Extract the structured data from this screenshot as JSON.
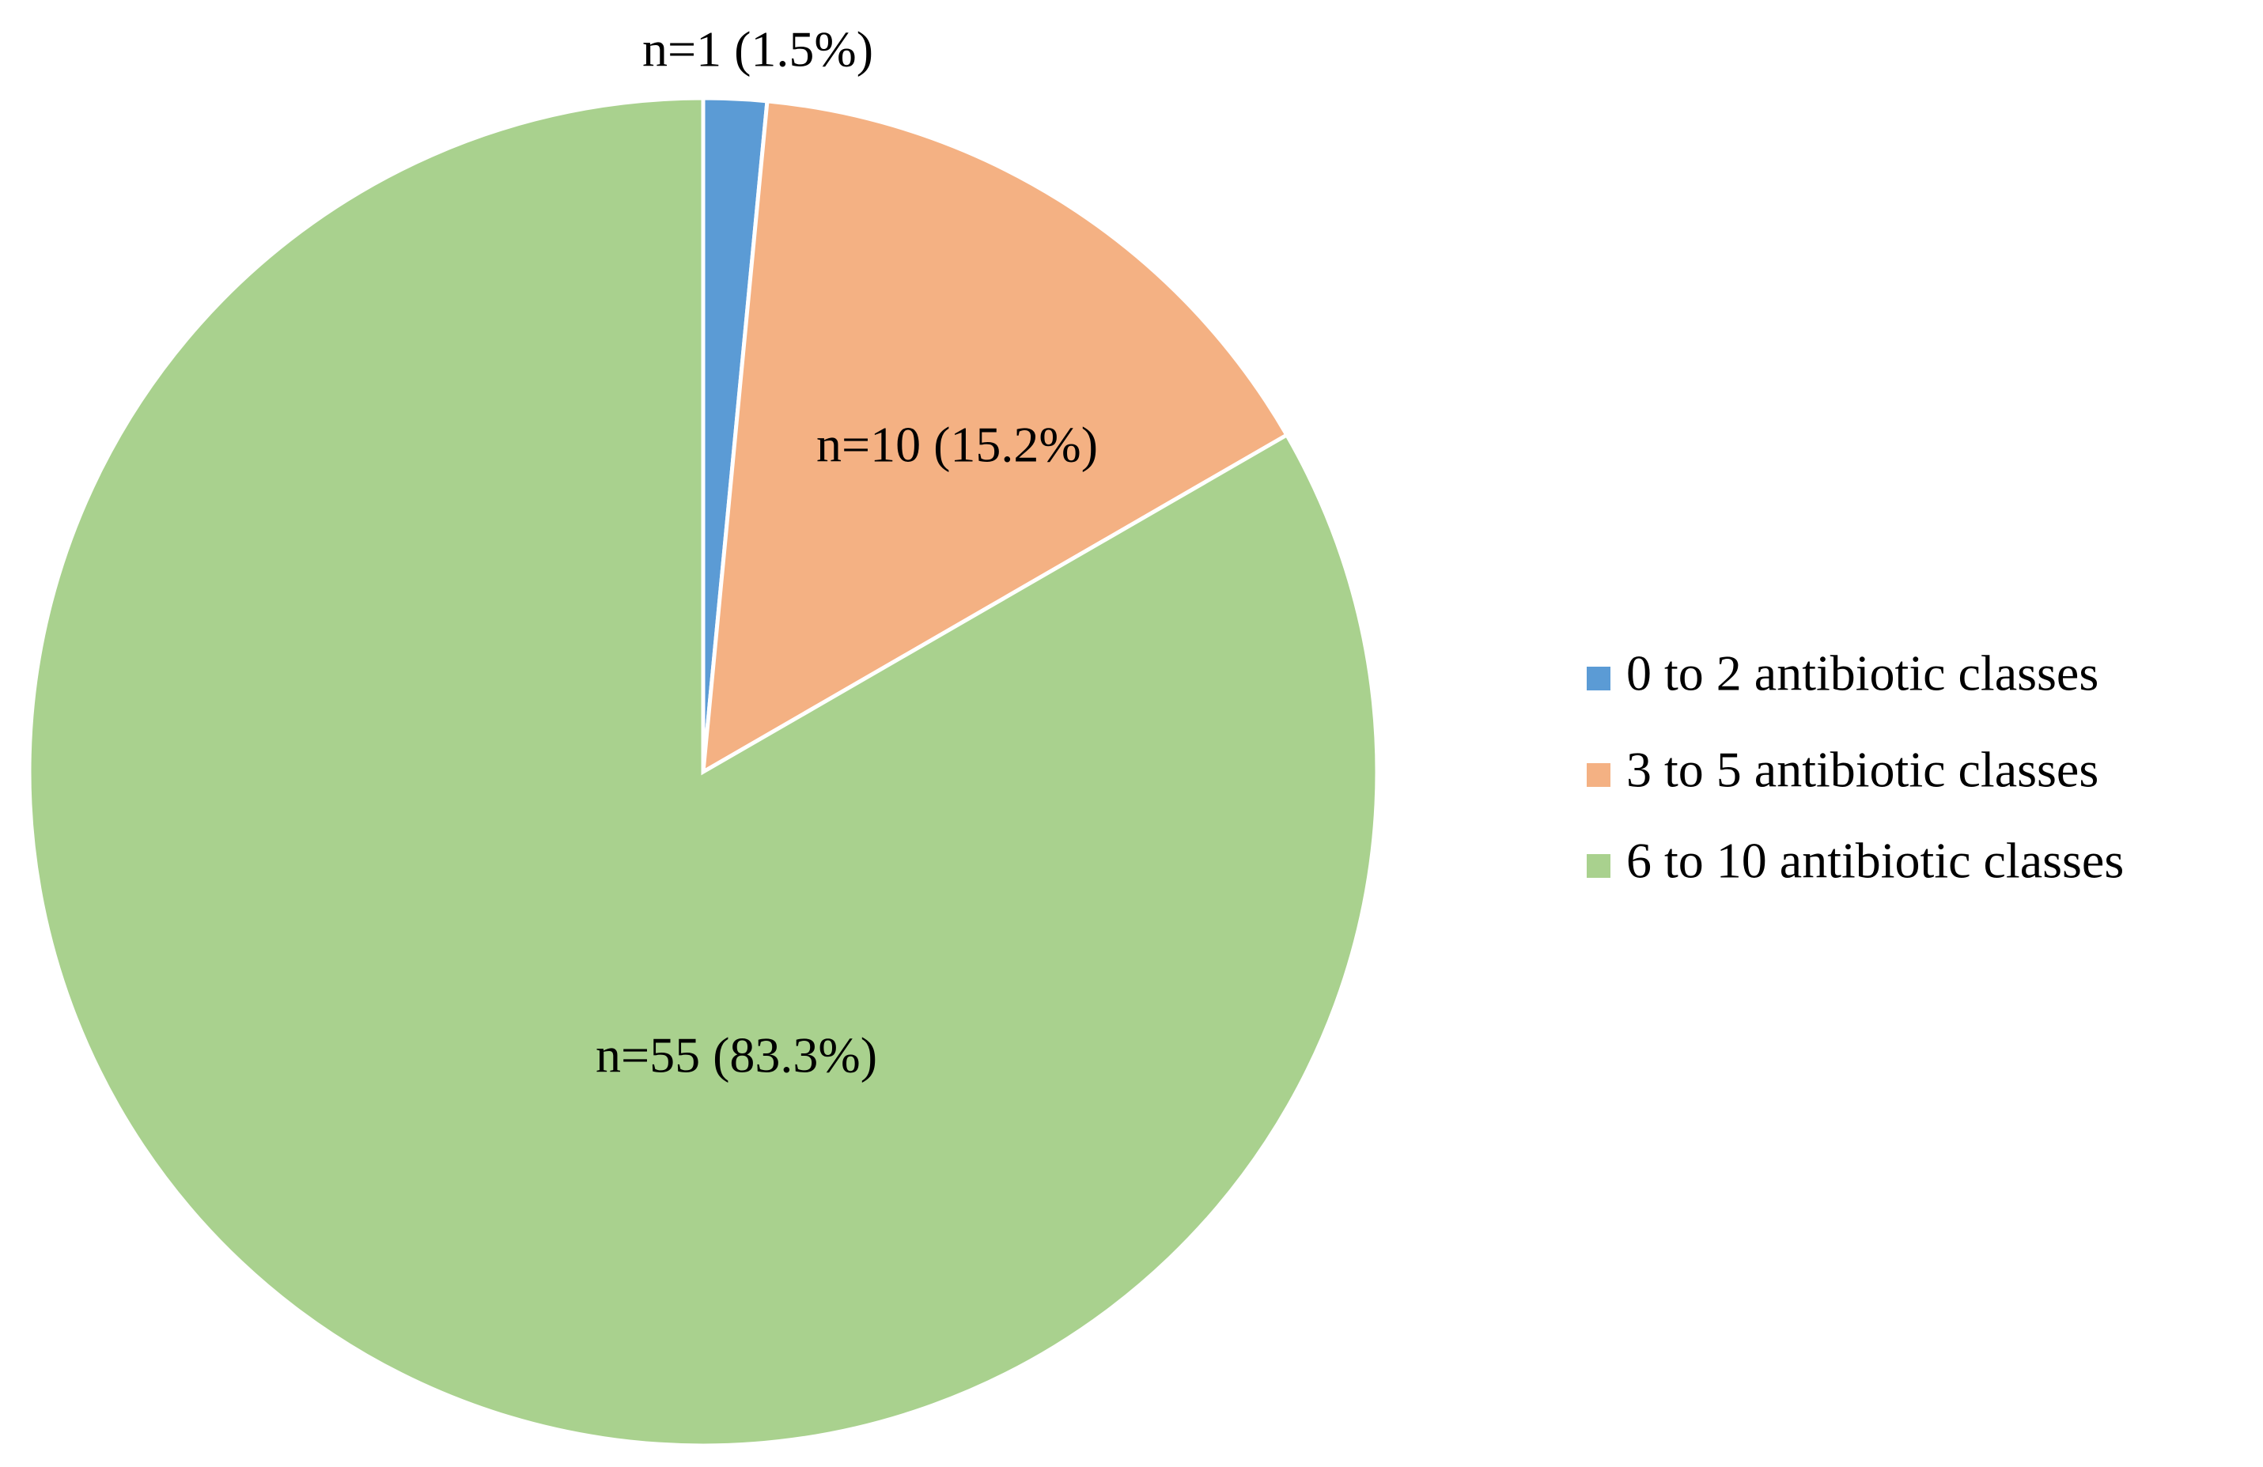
{
  "chart_data": {
    "type": "pie",
    "categories": [
      "0 to 2 antibiotic classes",
      "3 to 5 antibiotic classes",
      "6 to 10 antibiotic classes"
    ],
    "values": [
      1,
      10,
      55
    ],
    "value_labels": [
      "n=1 (1.5%)",
      "n=10 (15.2%)",
      "n=55 (83.3%)"
    ],
    "colors": [
      "#5b9bd5",
      "#f4b183",
      "#a9d18e"
    ],
    "legend": "right"
  }
}
